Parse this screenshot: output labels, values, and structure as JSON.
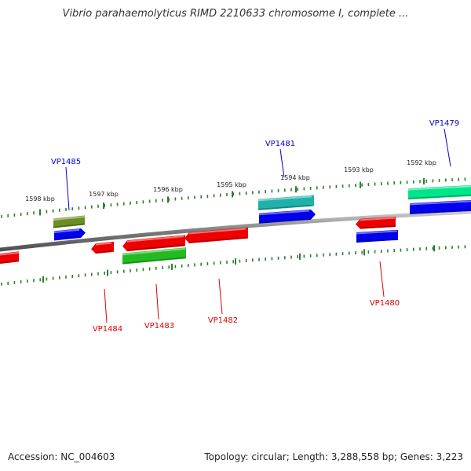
{
  "title": "Vibrio parahaemolyticus RIMD 2210633 chromosome I, complete ...",
  "footer": {
    "accession": "Accession: NC_004603",
    "summary": "Topology: circular; Length: 3,288,558 bp; Genes: 3,223"
  },
  "colors": {
    "forward_label": "#0000cc",
    "reverse_label": "#dd0000",
    "tick": "#2e7d2e",
    "backbone": "#8a8a8a"
  },
  "ticks": [
    {
      "label": "1598 kbp"
    },
    {
      "label": "1597 kbp"
    },
    {
      "label": "1596 kbp"
    },
    {
      "label": "1595 kbp"
    },
    {
      "label": "1594 kbp"
    },
    {
      "label": "1593 kbp"
    },
    {
      "label": "1592 kbp"
    }
  ],
  "genes": [
    {
      "name": "VP1485",
      "strand": "forward"
    },
    {
      "name": "VP1481",
      "strand": "forward"
    },
    {
      "name": "VP1479",
      "strand": "forward"
    },
    {
      "name": "VP1484",
      "strand": "reverse"
    },
    {
      "name": "VP1483",
      "strand": "reverse"
    },
    {
      "name": "VP1482",
      "strand": "reverse"
    },
    {
      "name": "VP1480",
      "strand": "reverse"
    }
  ],
  "features": [
    {
      "type": "olive-feature",
      "color": "#6b8e23"
    },
    {
      "type": "blue-cds",
      "color": "#0000ee"
    },
    {
      "type": "teal-feature",
      "color": "#20b2aa"
    },
    {
      "type": "blue-cds",
      "color": "#0000ee"
    },
    {
      "type": "spring-green-feature",
      "color": "#00e58a"
    },
    {
      "type": "blue-cds",
      "color": "#0000ee"
    },
    {
      "type": "red-gene",
      "color": "#ee0000"
    },
    {
      "type": "red-gene",
      "color": "#ee0000"
    },
    {
      "type": "red-gene",
      "color": "#ee0000"
    },
    {
      "type": "red-gene",
      "color": "#ee0000"
    },
    {
      "type": "green-feature",
      "color": "#22bb22"
    },
    {
      "type": "red-gene",
      "color": "#ee0000"
    },
    {
      "type": "blue-cds",
      "color": "#0000ee"
    }
  ]
}
